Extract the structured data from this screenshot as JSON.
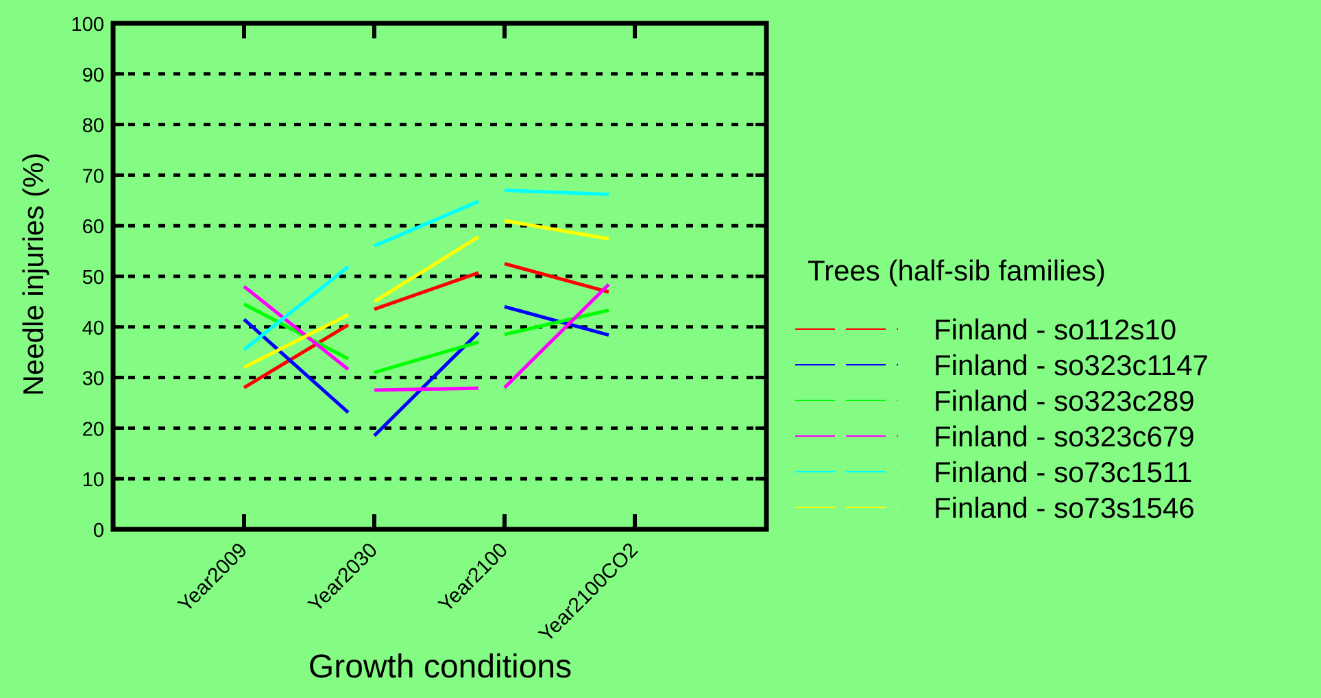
{
  "chart_data": {
    "type": "line",
    "title": "",
    "xlabel": "Growth conditions",
    "ylabel": "Needle injuries (%)",
    "categories": [
      "Year2009",
      "Year2030",
      "Year2100",
      "Year2100CO2"
    ],
    "ylim": [
      0,
      100
    ],
    "yticks": [
      0,
      10,
      20,
      30,
      40,
      50,
      60,
      70,
      80,
      90,
      100
    ],
    "grid": true,
    "grid_style": "dashed",
    "legend_title": "Trees (half-sib families)",
    "legend_position": "right",
    "background_color": "#84fc84",
    "series": [
      {
        "name": "Finland - so112s10",
        "color": "#ff0000",
        "values": [
          28,
          43.5,
          52.5,
          45.5
        ]
      },
      {
        "name": "Finland - so323c1147",
        "color": "#0000ff",
        "values": [
          41.5,
          18.5,
          44,
          37
        ]
      },
      {
        "name": "Finland - so323c289",
        "color": "#00ff00",
        "values": [
          44.5,
          31,
          38.5,
          44.5
        ]
      },
      {
        "name": "Finland - so323c679",
        "color": "#ff00ff",
        "values": [
          48,
          27.5,
          28,
          53.5
        ]
      },
      {
        "name": "Finland - so73c1511",
        "color": "#00ffff",
        "values": [
          35.5,
          56,
          67,
          66
        ]
      },
      {
        "name": "Finland - so73s1546",
        "color": "#ffff00",
        "values": [
          32,
          45,
          61,
          56.5
        ]
      }
    ]
  }
}
